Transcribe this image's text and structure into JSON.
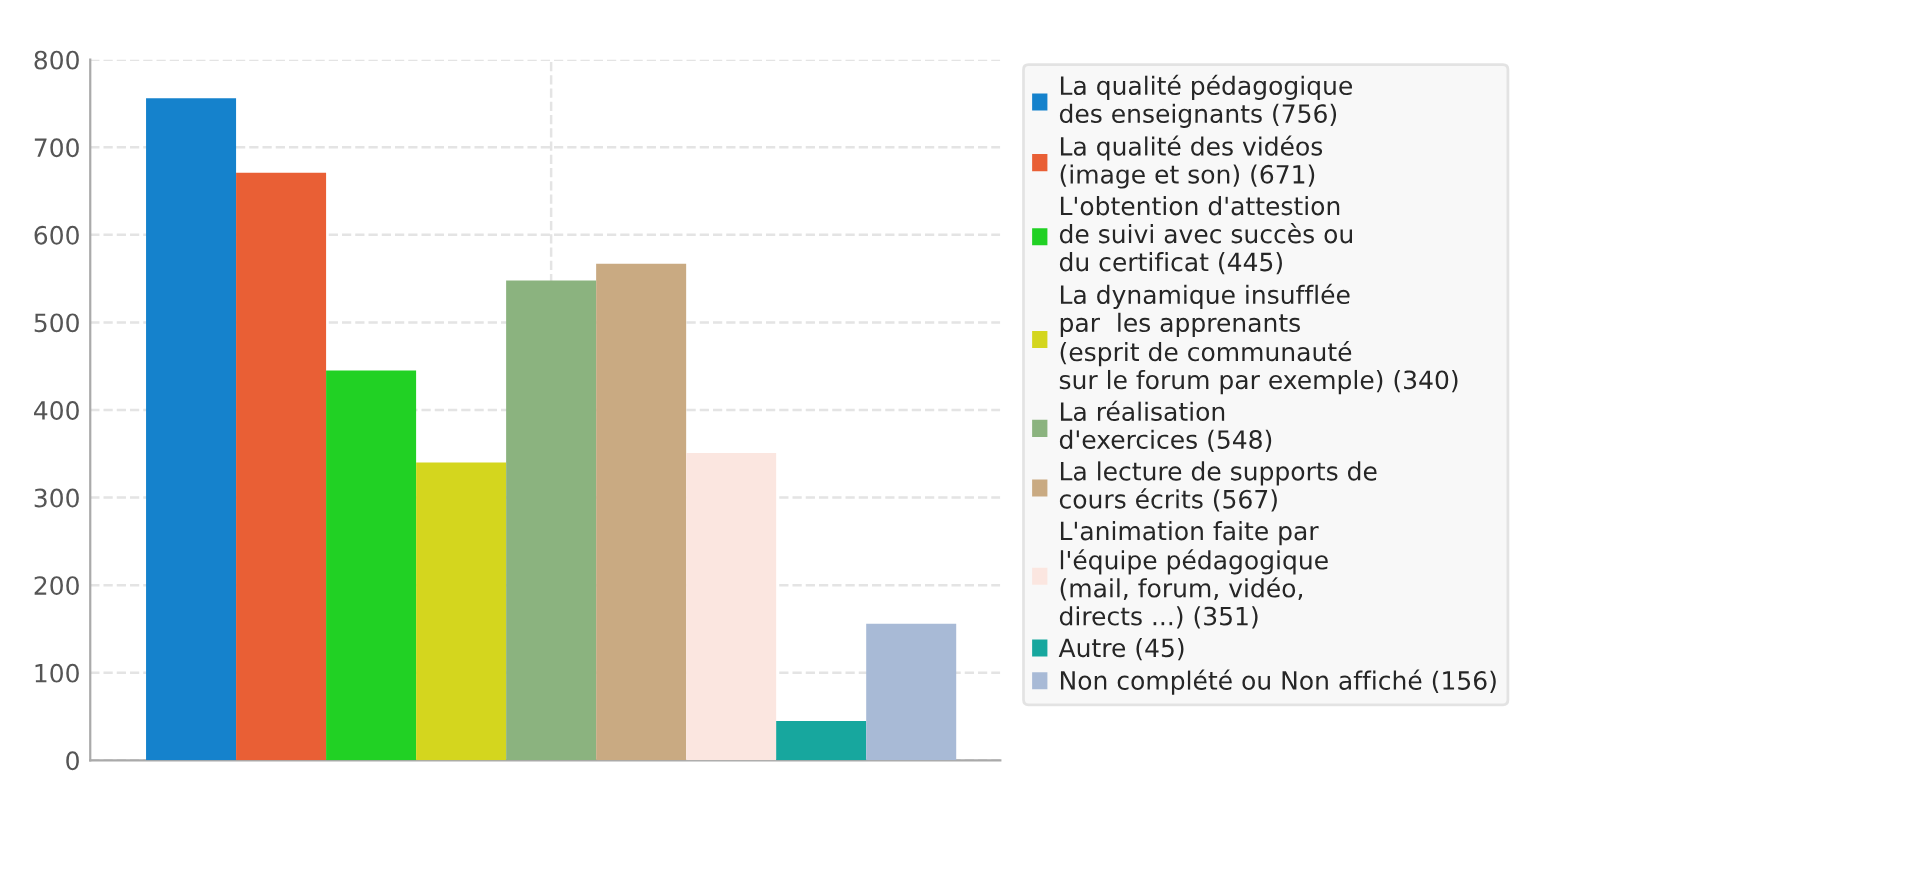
{
  "chart_data": {
    "type": "bar",
    "categories": [
      null
    ],
    "series": [
      {
        "name": "La qualité pédagogique\ndes enseignants (756)",
        "color": "#1582cc",
        "values": [
          756
        ]
      },
      {
        "name": "La qualité des vidéos\n(image et son) (671)",
        "color": "#e95f35",
        "values": [
          671
        ]
      },
      {
        "name": "L'obtention d'attestion\nde suivi avec succès ou\ndu certificat (445)",
        "color": "#21d124",
        "values": [
          445
        ]
      },
      {
        "name": "La dynamique insufflée\npar  les apprenants\n(esprit de communauté\nsur le forum par exemple) (340)",
        "color": "#d4d61e",
        "values": [
          340
        ]
      },
      {
        "name": "La réalisation\nd'exercices (548)",
        "color": "#8bb37f",
        "values": [
          548
        ]
      },
      {
        "name": "La lecture de supports de\ncours écrits (567)",
        "color": "#c9aa82",
        "values": [
          567
        ]
      },
      {
        "name": "L'animation faite par\nl'équipe pédagogique\n(mail, forum, vidéo,\ndirects ...) (351)",
        "color": "#fbe6e0",
        "values": [
          351
        ]
      },
      {
        "name": "Autre (45)",
        "color": "#17a79e",
        "values": [
          45
        ]
      },
      {
        "name": "Non complété ou Non affiché (156)",
        "color": "#a8bad6",
        "values": [
          156
        ]
      }
    ],
    "ylim": [
      0,
      800
    ],
    "yticks": [
      0,
      100,
      200,
      300,
      400,
      500,
      600,
      700,
      800
    ],
    "grid": true,
    "legend": "right"
  }
}
